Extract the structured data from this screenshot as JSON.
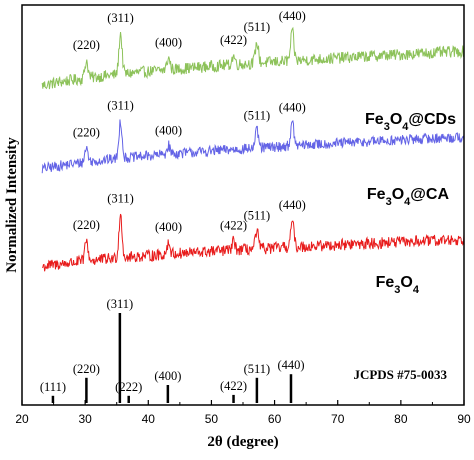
{
  "chart_data": {
    "type": "line",
    "xlabel": "2θ (degree)",
    "ylabel": "Normalized Intensity",
    "xlim": [
      20,
      90
    ],
    "x_ticks": [
      "20",
      "30",
      "40",
      "50",
      "60",
      "70",
      "80",
      "90"
    ],
    "x_tick_values": [
      20,
      30,
      40,
      50,
      60,
      70,
      80,
      90
    ],
    "y_ticks_shown": false,
    "grid": false,
    "stacked_offset": true,
    "series": [
      {
        "name": "Fe3O4@CDs",
        "label_parts": [
          "Fe",
          "3",
          "O",
          "4",
          "@CDs"
        ],
        "color": "#8dc25a",
        "baseline_start": 0.08,
        "baseline_end": 0.23,
        "noise_amplitude": 0.02,
        "peaks": [
          {
            "hkl": "(220)",
            "two_theta": 30.2,
            "height": 0.06
          },
          {
            "hkl": "(311)",
            "two_theta": 35.6,
            "height": 0.14
          },
          {
            "hkl": "(400)",
            "two_theta": 43.2,
            "height": 0.04
          },
          {
            "hkl": "(422)",
            "two_theta": 53.5,
            "height": 0.03
          },
          {
            "hkl": "(511)",
            "two_theta": 57.2,
            "height": 0.07
          },
          {
            "hkl": "(440)",
            "two_theta": 62.8,
            "height": 0.1
          }
        ]
      },
      {
        "name": "Fe3O4@CA",
        "label_parts": [
          "Fe",
          "3",
          "O",
          "4",
          "@CA"
        ],
        "color": "#6464e6",
        "baseline_start": 0.06,
        "baseline_end": 0.2,
        "noise_amplitude": 0.018,
        "peaks": [
          {
            "hkl": "(220)",
            "two_theta": 30.2,
            "height": 0.05
          },
          {
            "hkl": "(311)",
            "two_theta": 35.6,
            "height": 0.13
          },
          {
            "hkl": "(400)",
            "two_theta": 43.2,
            "height": 0.03
          },
          {
            "hkl": "(511)",
            "two_theta": 57.2,
            "height": 0.06
          },
          {
            "hkl": "(440)",
            "two_theta": 62.8,
            "height": 0.08
          }
        ]
      },
      {
        "name": "Fe3O4",
        "label_parts": [
          "Fe",
          "3",
          "O",
          "4",
          ""
        ],
        "color": "#e81c1c",
        "baseline_start": 0.03,
        "baseline_end": 0.15,
        "noise_amplitude": 0.02,
        "peaks": [
          {
            "hkl": "(220)",
            "two_theta": 30.2,
            "height": 0.07
          },
          {
            "hkl": "(311)",
            "two_theta": 35.6,
            "height": 0.15
          },
          {
            "hkl": "(400)",
            "two_theta": 43.2,
            "height": 0.04
          },
          {
            "hkl": "(422)",
            "two_theta": 53.5,
            "height": 0.03
          },
          {
            "hkl": "(511)",
            "two_theta": 57.2,
            "height": 0.06
          },
          {
            "hkl": "(440)",
            "two_theta": 62.8,
            "height": 0.09
          }
        ]
      }
    ],
    "reference": {
      "name": "JCPDS #75-0033",
      "color": "#000000",
      "lines": [
        {
          "hkl": "(111)",
          "two_theta": 24.9,
          "intensity": 8
        },
        {
          "hkl": "(220)",
          "two_theta": 30.2,
          "intensity": 28
        },
        {
          "hkl": "(311)",
          "two_theta": 35.5,
          "intensity": 100
        },
        {
          "hkl": "(222)",
          "two_theta": 36.9,
          "intensity": 8
        },
        {
          "hkl": "(400)",
          "two_theta": 43.1,
          "intensity": 20
        },
        {
          "hkl": "(422)",
          "two_theta": 53.5,
          "intensity": 9
        },
        {
          "hkl": "(511)",
          "two_theta": 57.2,
          "intensity": 28
        },
        {
          "hkl": "(440)",
          "two_theta": 62.6,
          "intensity": 32
        }
      ]
    }
  }
}
